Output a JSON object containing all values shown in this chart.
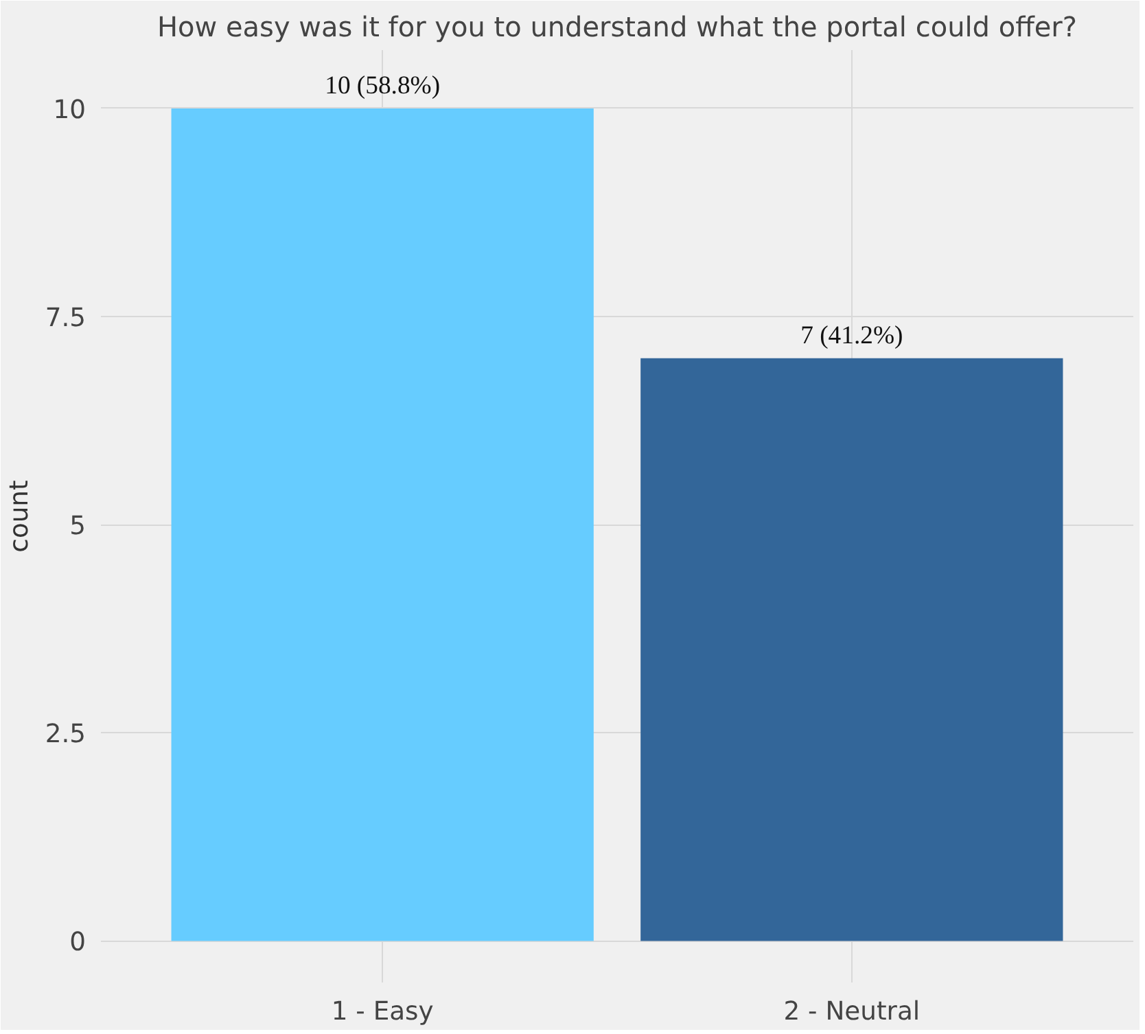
{
  "chart_data": {
    "type": "bar",
    "title": "How easy was it for you to understand what the portal could offer?",
    "ylabel": "count",
    "categories": [
      "1 - Easy",
      "2 - Neutral"
    ],
    "values": [
      10,
      7
    ],
    "colors": [
      "#66ccff",
      "#336699"
    ],
    "value_labels": [
      "10 (58.8%)",
      "7 (41.2%)"
    ],
    "ylim": [
      -0.5,
      10.7
    ],
    "yticks": [
      0,
      {
        "value": 2.5,
        "label": "2.5"
      },
      5,
      {
        "value": 7.5,
        "label": "7.5"
      },
      10
    ],
    "grid": true
  }
}
